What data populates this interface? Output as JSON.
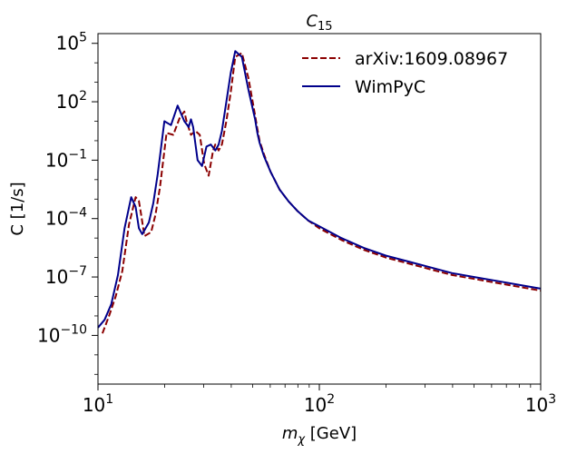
{
  "chart_data": {
    "type": "line",
    "title": "C",
    "title_subscript": "15",
    "xlabel_var": "m",
    "xlabel_sub": "χ",
    "xlabel_unit": " [GeV]",
    "ylabel": "C [1/s]",
    "xscale": "log",
    "yscale": "log",
    "xlim": [
      10,
      1000
    ],
    "ylim_exp": [
      -12.5,
      5.5
    ],
    "x_ticks": [
      {
        "base": "10",
        "exp": "1",
        "value": 10
      },
      {
        "base": "10",
        "exp": "2",
        "value": 100
      },
      {
        "base": "10",
        "exp": "3",
        "value": 1000
      }
    ],
    "y_ticks": [
      {
        "base": "10",
        "exp": "−10",
        "value": -10
      },
      {
        "base": "10",
        "exp": "−7",
        "value": -7
      },
      {
        "base": "10",
        "exp": "−4",
        "value": -4
      },
      {
        "base": "10",
        "exp": "−1",
        "value": -1
      },
      {
        "base": "10",
        "exp": "2",
        "value": 2
      },
      {
        "base": "10",
        "exp": "5",
        "value": 5
      }
    ],
    "legend_position": "top-right",
    "series": [
      {
        "name": "arXiv:1609.08967",
        "color": "#8b0000",
        "dash": "dashed",
        "log10_x": [
          1.02,
          1.05,
          1.08,
          1.11,
          1.14,
          1.17,
          1.185,
          1.195,
          1.21,
          1.24,
          1.26,
          1.28,
          1.31,
          1.34,
          1.37,
          1.39,
          1.4,
          1.42,
          1.44,
          1.46,
          1.48,
          1.5,
          1.52,
          1.53,
          1.545,
          1.56,
          1.58,
          1.6,
          1.62,
          1.65,
          1.68,
          1.71,
          1.72,
          1.73,
          1.75,
          1.78,
          1.82,
          1.86,
          1.9,
          1.95,
          2.0,
          2.05,
          2.1,
          2.2,
          2.3,
          2.4,
          2.5,
          2.6,
          2.7,
          2.8,
          2.9,
          3.0
        ],
        "log10_y": [
          -9.9,
          -9.0,
          -8.0,
          -6.7,
          -4.3,
          -2.9,
          -3.1,
          -3.8,
          -4.9,
          -4.7,
          -3.8,
          -2.4,
          0.4,
          0.3,
          1.2,
          1.5,
          1.0,
          0.3,
          0.5,
          0.3,
          -1.2,
          -1.8,
          -0.5,
          -0.2,
          -0.5,
          -0.2,
          1.0,
          2.5,
          4.3,
          4.5,
          3.2,
          1.3,
          0.6,
          0.0,
          -0.7,
          -1.6,
          -2.5,
          -3.1,
          -3.6,
          -4.1,
          -4.5,
          -4.8,
          -5.1,
          -5.6,
          -6.0,
          -6.3,
          -6.6,
          -6.9,
          -7.1,
          -7.3,
          -7.5,
          -7.7
        ]
      },
      {
        "name": "WimPyC",
        "color": "#00008b",
        "dash": "solid",
        "log10_x": [
          1.0,
          1.03,
          1.06,
          1.09,
          1.12,
          1.15,
          1.17,
          1.185,
          1.2,
          1.23,
          1.25,
          1.27,
          1.3,
          1.33,
          1.36,
          1.39,
          1.41,
          1.42,
          1.43,
          1.45,
          1.47,
          1.49,
          1.51,
          1.53,
          1.545,
          1.56,
          1.58,
          1.6,
          1.62,
          1.65,
          1.68,
          1.71,
          1.72,
          1.73,
          1.75,
          1.78,
          1.82,
          1.86,
          1.9,
          1.95,
          2.0,
          2.05,
          2.1,
          2.2,
          2.3,
          2.4,
          2.5,
          2.6,
          2.7,
          2.8,
          2.9,
          3.0
        ],
        "log10_y": [
          -9.6,
          -9.2,
          -8.4,
          -6.9,
          -4.5,
          -2.9,
          -3.4,
          -4.5,
          -4.8,
          -4.2,
          -3.2,
          -1.7,
          1.0,
          0.8,
          1.8,
          1.0,
          0.7,
          1.1,
          0.7,
          -1.0,
          -1.3,
          -0.3,
          -0.2,
          -0.5,
          -0.2,
          0.5,
          2.0,
          3.5,
          4.6,
          4.3,
          2.6,
          1.1,
          0.4,
          -0.1,
          -0.8,
          -1.6,
          -2.5,
          -3.1,
          -3.6,
          -4.1,
          -4.4,
          -4.7,
          -5.0,
          -5.5,
          -5.9,
          -6.2,
          -6.5,
          -6.8,
          -7.0,
          -7.2,
          -7.4,
          -7.6
        ]
      }
    ]
  }
}
